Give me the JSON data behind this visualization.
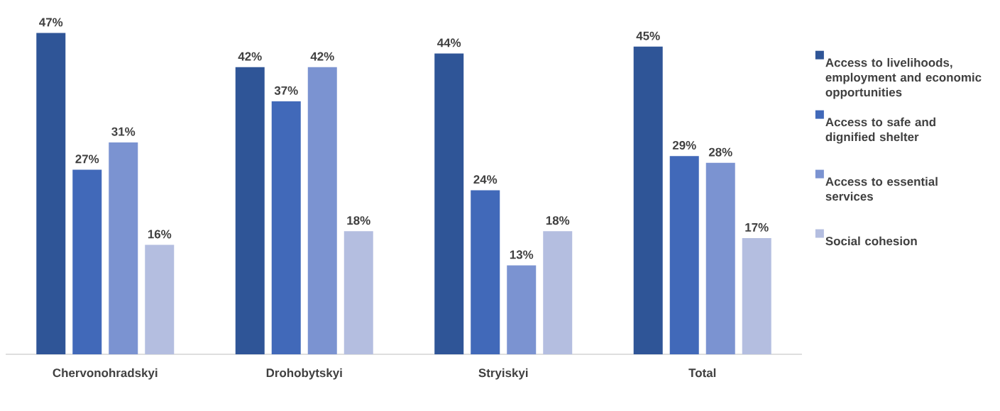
{
  "chart_data": {
    "type": "bar",
    "categories": [
      "Chervonohradskyi",
      "Drohobytskyi",
      "Stryiskyi",
      "Total"
    ],
    "series": [
      {
        "name": "Access to livelihoods, employment and economic opportunities",
        "color": "#2f5597",
        "values": [
          47,
          42,
          44,
          45
        ],
        "value_labels": [
          "47%",
          "42%",
          "44%",
          "45%"
        ]
      },
      {
        "name": "Access to safe and dignified shelter",
        "color": "#4169b9",
        "values": [
          27,
          37,
          24,
          29
        ],
        "value_labels": [
          "27%",
          "37%",
          "24%",
          "29%"
        ]
      },
      {
        "name": "Access to essential services",
        "color": "#7b93d1",
        "values": [
          31,
          42,
          13,
          28
        ],
        "value_labels": [
          "31%",
          "42%",
          "13%",
          "28%"
        ]
      },
      {
        "name": "Social cohesion",
        "color": "#b4bee0",
        "values": [
          16,
          18,
          18,
          17
        ],
        "value_labels": [
          "16%",
          "18%",
          "18%",
          "17%"
        ]
      }
    ],
    "legend": "right"
  }
}
